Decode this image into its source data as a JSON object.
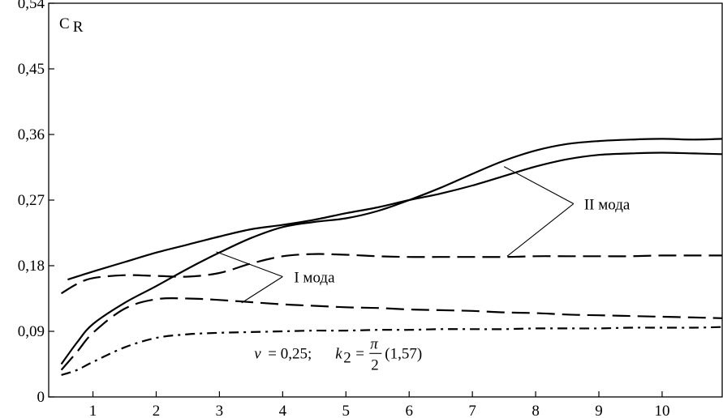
{
  "chart_data": {
    "type": "line",
    "ylabel": "C_R",
    "ylabel_main": "C",
    "ylabel_sub": "R",
    "xlim": [
      0.3,
      10.95
    ],
    "ylim": [
      0,
      0.54
    ],
    "x_ticks": [
      1,
      2,
      3,
      4,
      5,
      6,
      7,
      8,
      9,
      10
    ],
    "x_tick_labels": [
      "1",
      "2",
      "3",
      "4",
      "5",
      "6",
      "7",
      "8",
      "9",
      "10"
    ],
    "y_ticks": [
      0,
      0.09,
      0.18,
      0.27,
      0.36,
      0.45,
      0.54
    ],
    "y_tick_labels": [
      "0",
      "0,09",
      "0,18",
      "0,27",
      "0,36",
      "0,45",
      "0,54"
    ],
    "grid": false,
    "series": [
      {
        "style": "solid",
        "x": [
          0.6,
          1,
          1.5,
          2,
          2.5,
          3,
          3.5,
          4,
          4.5,
          5,
          5.5,
          6,
          6.5,
          7,
          7.5,
          8,
          8.5,
          9,
          9.5,
          10,
          10.5,
          10.95
        ],
        "y": [
          0.161,
          0.172,
          0.185,
          0.198,
          0.209,
          0.22,
          0.23,
          0.236,
          0.243,
          0.252,
          0.26,
          0.27,
          0.279,
          0.29,
          0.303,
          0.316,
          0.326,
          0.332,
          0.334,
          0.335,
          0.334,
          0.333
        ]
      },
      {
        "style": "solid",
        "x": [
          0.5,
          0.75,
          1,
          1.5,
          2,
          2.5,
          3,
          3.5,
          4,
          4.5,
          5,
          5.5,
          6,
          6.5,
          7,
          7.5,
          8,
          8.5,
          9,
          9.5,
          10,
          10.5,
          10.95
        ],
        "y": [
          0.045,
          0.075,
          0.1,
          0.129,
          0.152,
          0.176,
          0.198,
          0.218,
          0.233,
          0.24,
          0.245,
          0.255,
          0.27,
          0.287,
          0.306,
          0.324,
          0.338,
          0.347,
          0.351,
          0.353,
          0.354,
          0.353,
          0.354
        ]
      },
      {
        "style": "dashed",
        "x": [
          0.5,
          0.75,
          1,
          1.5,
          2,
          2.5,
          3,
          3.5,
          4,
          4.5,
          5,
          5.5,
          6,
          6.5,
          7,
          7.5,
          8,
          8.5,
          9,
          9.5,
          10,
          10.5,
          10.95
        ],
        "y": [
          0.142,
          0.155,
          0.163,
          0.167,
          0.166,
          0.165,
          0.17,
          0.183,
          0.193,
          0.196,
          0.195,
          0.193,
          0.192,
          0.192,
          0.192,
          0.192,
          0.193,
          0.193,
          0.193,
          0.193,
          0.194,
          0.194,
          0.194
        ]
      },
      {
        "style": "dashed",
        "x": [
          0.5,
          0.75,
          1,
          1.5,
          2,
          2.5,
          3,
          3.5,
          4,
          4.5,
          5,
          5.5,
          6,
          6.5,
          7,
          7.5,
          8,
          8.5,
          9,
          9.5,
          10,
          10.5,
          10.95
        ],
        "y": [
          0.037,
          0.062,
          0.088,
          0.121,
          0.134,
          0.135,
          0.133,
          0.13,
          0.127,
          0.125,
          0.123,
          0.122,
          0.12,
          0.119,
          0.118,
          0.116,
          0.115,
          0.113,
          0.112,
          0.111,
          0.11,
          0.109,
          0.108
        ]
      },
      {
        "style": "dashdot",
        "x": [
          0.5,
          0.75,
          1,
          1.5,
          2,
          2.5,
          3,
          3.5,
          4,
          4.5,
          5,
          5.5,
          6,
          6.5,
          7,
          7.5,
          8,
          8.5,
          9,
          9.5,
          10,
          10.5,
          10.95
        ],
        "y": [
          0.03,
          0.037,
          0.048,
          0.068,
          0.081,
          0.086,
          0.088,
          0.089,
          0.09,
          0.091,
          0.091,
          0.092,
          0.092,
          0.093,
          0.093,
          0.093,
          0.094,
          0.094,
          0.094,
          0.095,
          0.095,
          0.095,
          0.096
        ]
      }
    ],
    "annotations": {
      "mode2": {
        "label": "II мода",
        "anchor": [
          8.6,
          0.265
        ],
        "targets": [
          [
            7.5,
            0.316
          ],
          [
            7.55,
            0.193
          ]
        ]
      },
      "mode1": {
        "label": "I мода",
        "anchor": [
          4.0,
          0.165
        ],
        "targets": [
          [
            2.95,
            0.199
          ],
          [
            3.35,
            0.129
          ]
        ]
      },
      "params": {
        "nu_sym": "ν",
        "nu_val": "= 0,25;",
        "k_sym": "k",
        "k_sub": "2",
        "eq": "=",
        "pi": "π",
        "den": "2",
        "val": "(1,57)",
        "anchor": [
          3.55,
          0.053
        ]
      }
    }
  }
}
